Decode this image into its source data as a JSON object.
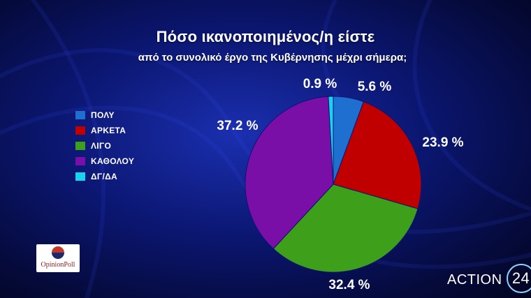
{
  "header": {
    "title": "Πόσο ικανοποιημένος/η είστε",
    "subtitle": "από το συνολικό έργο της Κυβέρνησης μέχρι σήμερα;"
  },
  "legend": [
    {
      "label": "ΠΟΛΥ",
      "color": "#1f6fd1"
    },
    {
      "label": "ΑΡΚΕΤΑ",
      "color": "#c00000"
    },
    {
      "label": "ΛΙΓΟ",
      "color": "#3ea01a"
    },
    {
      "label": "ΚΑΘΟΛΟΥ",
      "color": "#7a0fa8"
    },
    {
      "label": "ΔΓ/ΔΑ",
      "color": "#19d2f0"
    }
  ],
  "chart_data": {
    "type": "pie",
    "title": "Πόσο ικανοποιημένος/η είστε",
    "subtitle": "από το συνολικό έργο της Κυβέρνησης μέχρι σήμερα;",
    "categories": [
      "ΠΟΛΥ",
      "ΑΡΚΕΤΑ",
      "ΛΙΓΟ",
      "ΚΑΘΟΛΟΥ",
      "ΔΓ/ΔΑ"
    ],
    "values": [
      5.6,
      23.9,
      32.4,
      37.2,
      0.9
    ],
    "labels": [
      "5.6 %",
      "23.9 %",
      "32.4 %",
      "37.2 %",
      "0.9 %"
    ],
    "colors": [
      "#1f6fd1",
      "#c00000",
      "#3ea01a",
      "#7a0fa8",
      "#19d2f0"
    ],
    "legend_position": "left"
  },
  "branding": {
    "pollster": "OpinionPoll",
    "channel": "ACTION",
    "channel_number": "24"
  }
}
